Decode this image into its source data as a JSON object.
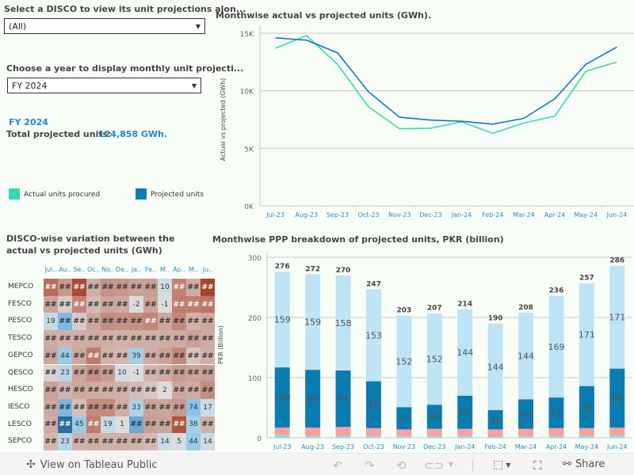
{
  "filters": {
    "disco": {
      "label": "Select a DISCO to view its unit projections alon...",
      "value": "(All)"
    },
    "year": {
      "label": "Choose a year to display monthly unit projecti...",
      "value": "FY 2024"
    }
  },
  "summary": {
    "year": "FY 2024",
    "total_label": "Total projected units:",
    "total_value": "124,858 GWh."
  },
  "legend": {
    "items": [
      {
        "label": "Actual units procured",
        "color": "#35d9b3"
      },
      {
        "label": "Projected units",
        "color": "#0f7cb3"
      }
    ]
  },
  "heatmap": {
    "title": "DISCO-wise variation between the actual vs projected units (GWh)",
    "columns": [
      "Jul..",
      "Au..",
      "Se..",
      "Oc..",
      "No..",
      "De..",
      "Ja..",
      "Fe..",
      "M..",
      "Ap..",
      "M..",
      "Ju.."
    ],
    "rows": [
      {
        "name": "MEPCO",
        "cells": [
          "##",
          "##",
          "##",
          "##",
          "##",
          "##",
          "##",
          "##",
          "10",
          "##",
          "##",
          "##"
        ],
        "colors": [
          "#b86c5c",
          "#c9978b",
          "#a84a35",
          "#cfaea6",
          "#c4928a",
          "#c9968a",
          "#cba39a",
          "#c89e94",
          "#cfdbe1",
          "#c38272",
          "#cfada5",
          "#a3442e"
        ]
      },
      {
        "name": "FESCO",
        "cells": [
          "##",
          "##",
          "##",
          "##",
          "##",
          "##",
          "-2",
          "##",
          "-1",
          "##",
          "##",
          "##"
        ],
        "colors": [
          "#cba49b",
          "#d8ccc8",
          "#c38476",
          "#d3bab5",
          "#cda59c",
          "#ccaaa3",
          "#dcdcdc",
          "#cba399",
          "#dddddd",
          "#c07d6e",
          "#c27f70",
          "#bd7565"
        ]
      },
      {
        "name": "PESCO",
        "cells": [
          "19",
          "##",
          "##",
          "##",
          "##",
          "##",
          "##",
          "##",
          "##",
          "##",
          "##",
          "##"
        ],
        "colors": [
          "#c6d9e6",
          "#7fb8e0",
          "#d8ccc8",
          "#cca69d",
          "#c28c80",
          "#c69288",
          "#c58f84",
          "#bf8578",
          "#cca59c",
          "#c5897b",
          "#d0b2ab",
          "#cda89f"
        ]
      },
      {
        "name": "TESCO",
        "cells": [
          "##",
          "##",
          "##",
          "##",
          "##",
          "##",
          "##",
          "##",
          "##",
          "##",
          "##",
          "##"
        ],
        "colors": [
          "#cfaca4",
          "#d1b2aa",
          "#d0ada5",
          "#ceaba3",
          "#cfaea6",
          "#d0b0a8",
          "#cfaea6",
          "#d0b0a8",
          "#cfada5",
          "#ceaba3",
          "#c8a096",
          "#ceaba3"
        ]
      },
      {
        "name": "GEPCO",
        "cells": [
          "##",
          "44",
          "##",
          "##",
          "##",
          "##",
          "39",
          "##",
          "##",
          "##",
          "##",
          "##"
        ],
        "colors": [
          "#cca69d",
          "#9acbe8",
          "#cda89f",
          "#bf7a69",
          "#d0b0a8",
          "#d3b8b1",
          "#a3cfe8",
          "#cfaea6",
          "#cba39a",
          "#c4897c",
          "#d6c5c1",
          "#d0b0a8"
        ]
      },
      {
        "name": "QESCO",
        "cells": [
          "##",
          "23",
          "##",
          "##",
          "##",
          "10",
          "-1",
          "##",
          "##",
          "##",
          "##",
          "##"
        ],
        "colors": [
          "#dad2d0",
          "#bad5e6",
          "#cba49b",
          "#c39082",
          "#c89c91",
          "#d2dde3",
          "#dddddd",
          "#d1b5ae",
          "#cfaca4",
          "#c69a8e",
          "#cba39a",
          "#c89f95"
        ]
      },
      {
        "name": "HESCO",
        "cells": [
          "##",
          "##",
          "##",
          "##",
          "##",
          "##",
          "##",
          "##",
          "2",
          "##",
          "##",
          "##"
        ],
        "colors": [
          "#caa298",
          "#d1b5ae",
          "#cda89f",
          "#ceaba3",
          "#cfaea6",
          "#d0b0a8",
          "#d3bcb6",
          "#d7c8c4",
          "#dddcdc",
          "#cda89f",
          "#ceaba3",
          "#c18e80"
        ]
      },
      {
        "name": "IESCO",
        "cells": [
          "##",
          "##",
          "##",
          "##",
          "##",
          "##",
          "33",
          "##",
          "##",
          "##",
          "74",
          "17"
        ],
        "colors": [
          "#cda89f",
          "#7db6de",
          "#d4bfba",
          "#c48a7c",
          "#c48a7c",
          "#cfaea6",
          "#abd2e8",
          "#caa298",
          "#cba49b",
          "#c69a8e",
          "#8cc3e6",
          "#c8dbe6"
        ]
      },
      {
        "name": "LESCO",
        "cells": [
          "##",
          "##",
          "45",
          "##",
          "19",
          "1",
          "##",
          "##",
          "##",
          "##",
          "38",
          "##"
        ],
        "colors": [
          "#cfaca4",
          "#2e6ba3",
          "#9acbe8",
          "#c07d6e",
          "#c6d9e6",
          "#dddddd",
          "#6da8d6",
          "#c9a197",
          "#cba49b",
          "#b0563f",
          "#a6d0e8",
          "#d0b0a8"
        ]
      },
      {
        "name": "SEPCO",
        "cells": [
          "##",
          "23",
          "##",
          "##",
          "##",
          "##",
          "##",
          "##",
          "14",
          "5",
          "44",
          "14"
        ],
        "colors": [
          "#d1b5ae",
          "#bad5e6",
          "#d0b2ab",
          "#cfaea6",
          "#d0b0a8",
          "#cfaea6",
          "#d1b2aa",
          "#d3bab5",
          "#ccdce4",
          "#d8dde0",
          "#9acbe8",
          "#ccdce4"
        ]
      }
    ]
  },
  "chart_data": [
    {
      "type": "line",
      "title": "Monthwise actual vs projected units (GWh).",
      "xlabel": "",
      "ylabel": "Actual vs projected (GWh)",
      "x": [
        "Jul-23",
        "Aug-23",
        "Sep-23",
        "Oct-23",
        "Nov-23",
        "Dec-23",
        "Jan-24",
        "Feb-24",
        "Mar-24",
        "Apr-24",
        "May-24",
        "Jun-24"
      ],
      "yticks": [
        "0K",
        "5K",
        "10K",
        "15K"
      ],
      "ylim": [
        0,
        15600
      ],
      "grid": true,
      "series": [
        {
          "name": "Actual units procured",
          "color": "#35d9b3",
          "values": [
            13700,
            14800,
            12300,
            8600,
            6700,
            6750,
            7300,
            6300,
            7200,
            7800,
            11700,
            12500
          ]
        },
        {
          "name": "Projected units",
          "color": "#0f7cb3",
          "values": [
            14600,
            14400,
            13300,
            9900,
            7700,
            7450,
            7350,
            7100,
            7600,
            9300,
            12300,
            13800
          ]
        }
      ]
    },
    {
      "type": "bar",
      "stacked": true,
      "title": "Monthwise PPP breakdown of projected units, PKR (billion)",
      "xlabel": "",
      "ylabel": "PKR (Billion)",
      "categories": [
        "Jul-23",
        "Aug-23",
        "Sep-23",
        "Oct-23",
        "Nov-23",
        "Dec-23",
        "Jan-24",
        "Feb-24",
        "Mar-24",
        "Apr-24",
        "May-24",
        "Jun-24"
      ],
      "yticks": [
        "0",
        "100",
        "200",
        "300"
      ],
      "ylim": [
        0,
        300
      ],
      "grid": true,
      "totals": [
        276,
        272,
        270,
        247,
        203,
        207,
        214,
        190,
        208,
        236,
        257,
        286
      ],
      "series": [
        {
          "name": "segment-green",
          "color": "#8fdccc",
          "values": [
            5,
            3,
            4,
            4,
            3,
            3,
            3,
            2,
            3,
            3,
            4,
            4
          ],
          "labeled": false
        },
        {
          "name": "segment-pink",
          "color": "#fb9fa0",
          "values": [
            12,
            14,
            14,
            12,
            11,
            12,
            12,
            12,
            12,
            13,
            12,
            13
          ],
          "labeled": false
        },
        {
          "name": "segment-dark-blue",
          "color": "#0a7cb1",
          "values": [
            100,
            96,
            94,
            78,
            37,
            40,
            55,
            32,
            49,
            51,
            70,
            98
          ],
          "labeled": true
        },
        {
          "name": "segment-light-blue",
          "color": "#bee4f6",
          "values": [
            159,
            159,
            158,
            153,
            152,
            152,
            144,
            144,
            144,
            169,
            171,
            171
          ],
          "labeled": true
        }
      ]
    }
  ],
  "toolbar": {
    "view_label": "View on Tableau Public",
    "share_label": "Share"
  }
}
